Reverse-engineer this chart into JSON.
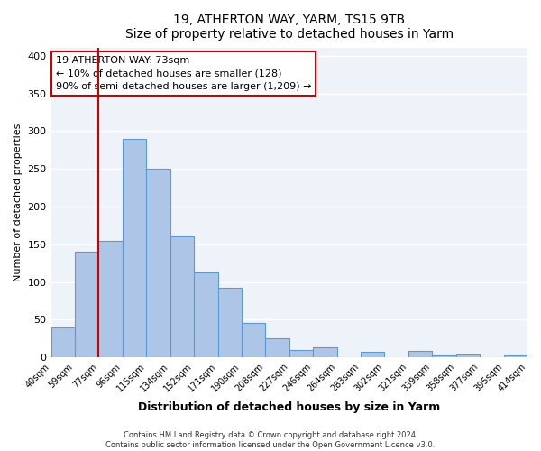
{
  "title": "19, ATHERTON WAY, YARM, TS15 9TB",
  "subtitle": "Size of property relative to detached houses in Yarm",
  "xlabel": "Distribution of detached houses by size in Yarm",
  "ylabel": "Number of detached properties",
  "bin_labels": [
    "40sqm",
    "59sqm",
    "77sqm",
    "96sqm",
    "115sqm",
    "134sqm",
    "152sqm",
    "171sqm",
    "190sqm",
    "208sqm",
    "227sqm",
    "246sqm",
    "264sqm",
    "283sqm",
    "302sqm",
    "321sqm",
    "339sqm",
    "358sqm",
    "377sqm",
    "395sqm",
    "414sqm"
  ],
  "bar_values": [
    40,
    140,
    155,
    290,
    250,
    160,
    113,
    92,
    46,
    25,
    10,
    13,
    0,
    8,
    0,
    9,
    3,
    4,
    0,
    3
  ],
  "bar_color": "#adc6e8",
  "bar_edge_color": "#5b9bd5",
  "background_color": "#eef2f9",
  "grid_color": "#ffffff",
  "ylim": [
    0,
    410
  ],
  "yticks": [
    0,
    50,
    100,
    150,
    200,
    250,
    300,
    350,
    400
  ],
  "vline_color": "#cc0000",
  "annotation_title": "19 ATHERTON WAY: 73sqm",
  "annotation_line1": "← 10% of detached houses are smaller (128)",
  "annotation_line2": "90% of semi-detached houses are larger (1,209) →",
  "footer1": "Contains HM Land Registry data © Crown copyright and database right 2024.",
  "footer2": "Contains public sector information licensed under the Open Government Licence v3.0."
}
